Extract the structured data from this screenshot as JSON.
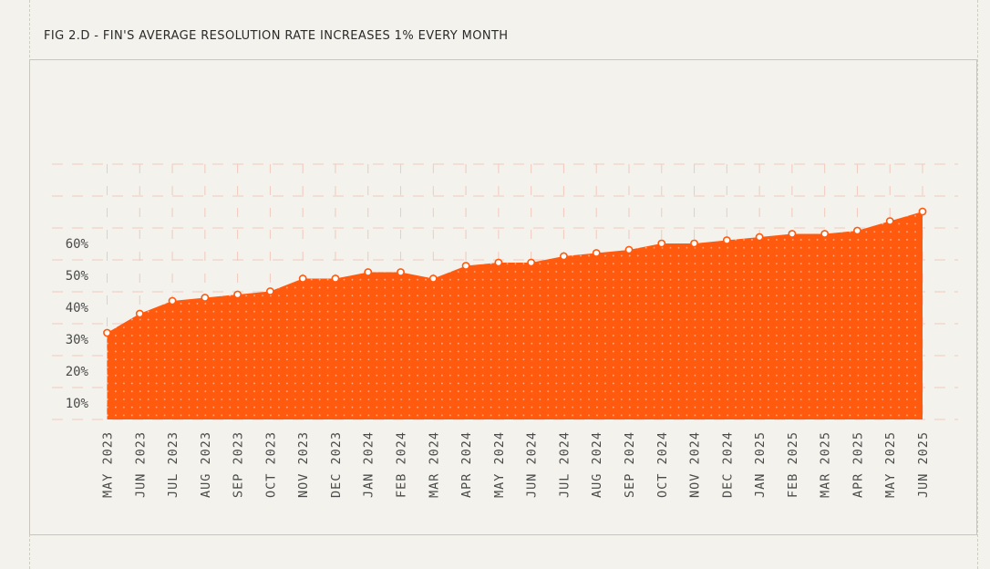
{
  "figure": {
    "title": "FIG 2.D - FIN'S AVERAGE RESOLUTION RATE INCREASES 1% EVERY MONTH"
  },
  "colors": {
    "background": "#f3f2ec",
    "area_fill": "#ff5a0e",
    "grid": "#f2c9bd",
    "text": "#2a2a2a",
    "tick_text": "#4a4a4a",
    "point_fill": "#ffffff"
  },
  "chart_data": {
    "type": "area",
    "title": "",
    "xlabel": "",
    "ylabel": "",
    "categories": [
      "MAY 2023",
      "JUN 2023",
      "JUL 2023",
      "AUG 2023",
      "SEP 2023",
      "OCT 2023",
      "NOV 2023",
      "DEC 2023",
      "JAN 2024",
      "FEB 2024",
      "MAR 2024",
      "APR 2024",
      "MAY 2024",
      "JUN 2024",
      "JUL 2024",
      "AUG 2024",
      "SEP 2024",
      "OCT 2024",
      "NOV 2024",
      "DEC 2024",
      "JAN 2025",
      "FEB 2025",
      "MAR 2025",
      "APR 2025",
      "MAY 2025",
      "JUN 2025"
    ],
    "series": [
      {
        "values": [
          32,
          38,
          42,
          43,
          44,
          45,
          49,
          49,
          51,
          51,
          49,
          53,
          54,
          54,
          56,
          57,
          58,
          60,
          60,
          61,
          62,
          63,
          63,
          64,
          67,
          70
        ]
      }
    ],
    "yticks": [
      {
        "value": 10,
        "label": "10%"
      },
      {
        "value": 20,
        "label": "20%"
      },
      {
        "value": 30,
        "label": "30%"
      },
      {
        "value": 40,
        "label": "40%"
      },
      {
        "value": 50,
        "label": "50%"
      },
      {
        "value": 60,
        "label": "60%"
      }
    ],
    "ylim": [
      5,
      90
    ],
    "grid": true,
    "legend": "none",
    "markers": "white circles",
    "fill_pattern": "dotted"
  }
}
